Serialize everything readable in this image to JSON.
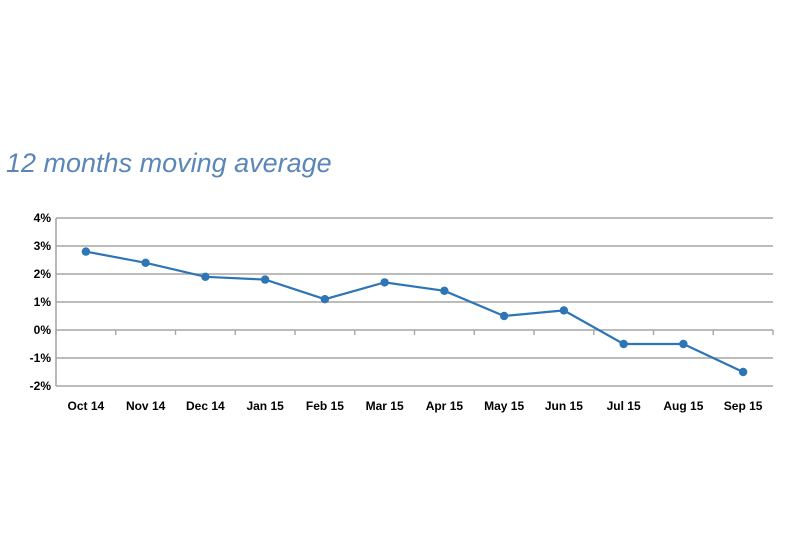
{
  "title": "12 months moving average",
  "chart_data": {
    "type": "line",
    "title": "12 months moving average",
    "xlabel": "",
    "ylabel": "",
    "categories": [
      "Oct 14",
      "Nov 14",
      "Dec 14",
      "Jan 15",
      "Feb 15",
      "Mar 15",
      "Apr 15",
      "May 15",
      "Jun 15",
      "Jul 15",
      "Aug 15",
      "Sep 15"
    ],
    "series": [
      {
        "values": [
          2.8,
          2.4,
          1.9,
          1.8,
          1.1,
          1.7,
          1.4,
          0.5,
          0.7,
          -0.5,
          -0.5,
          -1.5
        ]
      }
    ],
    "ylim": [
      -2,
      4
    ],
    "yticks": [
      -2,
      -1,
      0,
      1,
      2,
      3,
      4
    ],
    "ytick_labels": [
      "-2%",
      "-1%",
      "0%",
      "1%",
      "2%",
      "3%",
      "4%"
    ],
    "grid": true,
    "color": "#2e75b6",
    "grid_color": "#a6a6a6"
  }
}
